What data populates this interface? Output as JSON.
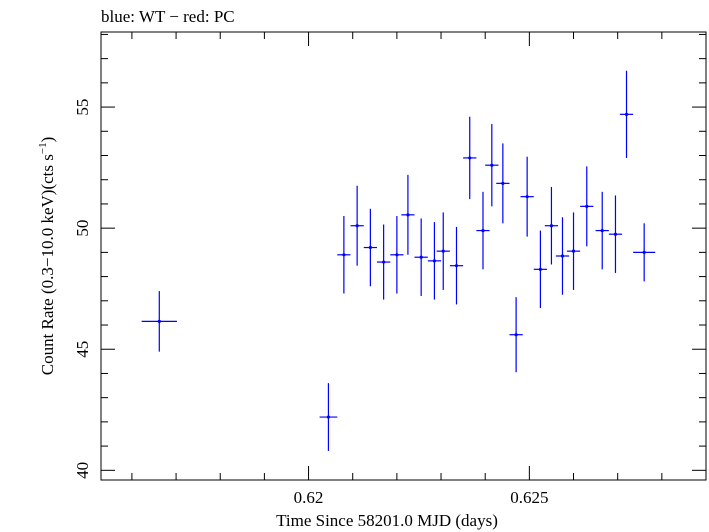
{
  "chart_data": {
    "type": "scatter",
    "title": "blue: WT − red: PC",
    "xlabel": "Time Since 58201.0 MJD (days)",
    "ylabel_main": "Count Rate (0.3−10.0 keV)(cts s",
    "ylabel_sup": "−1",
    "ylabel_end": ")",
    "xlim": [
      0.6153,
      0.629
    ],
    "ylim": [
      39.6,
      58.1
    ],
    "x_ticks": [
      {
        "value": 0.62,
        "label": "0.62"
      },
      {
        "value": 0.625,
        "label": "0.625"
      }
    ],
    "x_minor_step": 0.001,
    "y_ticks": [
      {
        "value": 40,
        "label": "40"
      },
      {
        "value": 45,
        "label": "45"
      },
      {
        "value": 50,
        "label": "50"
      },
      {
        "value": 55,
        "label": "55"
      }
    ],
    "y_minor_step": 1,
    "grid": false,
    "series": [
      {
        "color": "#0000ff",
        "points": [
          {
            "x": 0.61662,
            "y": 46.15,
            "xerr": 0.0004,
            "yerr": 1.25
          },
          {
            "x": 0.62045,
            "y": 42.2,
            "xerr": 0.0002,
            "yerr": 1.4
          },
          {
            "x": 0.6208,
            "y": 48.9,
            "xerr": 0.00015,
            "yerr": 1.6
          },
          {
            "x": 0.6211,
            "y": 50.1,
            "xerr": 0.00015,
            "yerr": 1.65
          },
          {
            "x": 0.6214,
            "y": 49.2,
            "xerr": 0.00015,
            "yerr": 1.6
          },
          {
            "x": 0.6217,
            "y": 48.6,
            "xerr": 0.00015,
            "yerr": 1.55
          },
          {
            "x": 0.622,
            "y": 48.9,
            "xerr": 0.00015,
            "yerr": 1.6
          },
          {
            "x": 0.62225,
            "y": 50.55,
            "xerr": 0.00015,
            "yerr": 1.65
          },
          {
            "x": 0.62255,
            "y": 48.8,
            "xerr": 0.00015,
            "yerr": 1.6
          },
          {
            "x": 0.62285,
            "y": 48.65,
            "xerr": 0.00015,
            "yerr": 1.6
          },
          {
            "x": 0.62305,
            "y": 49.05,
            "xerr": 0.00015,
            "yerr": 1.6
          },
          {
            "x": 0.62335,
            "y": 48.45,
            "xerr": 0.00015,
            "yerr": 1.6
          },
          {
            "x": 0.62365,
            "y": 52.9,
            "xerr": 0.00015,
            "yerr": 1.7
          },
          {
            "x": 0.62395,
            "y": 49.9,
            "xerr": 0.00015,
            "yerr": 1.6
          },
          {
            "x": 0.62415,
            "y": 52.6,
            "xerr": 0.00015,
            "yerr": 1.7
          },
          {
            "x": 0.6244,
            "y": 51.85,
            "xerr": 0.00015,
            "yerr": 1.65
          },
          {
            "x": 0.6247,
            "y": 45.6,
            "xerr": 0.00015,
            "yerr": 1.55
          },
          {
            "x": 0.62495,
            "y": 51.3,
            "xerr": 0.00015,
            "yerr": 1.65
          },
          {
            "x": 0.62525,
            "y": 48.3,
            "xerr": 0.00015,
            "yerr": 1.6
          },
          {
            "x": 0.6255,
            "y": 50.1,
            "xerr": 0.00015,
            "yerr": 1.6
          },
          {
            "x": 0.62575,
            "y": 48.85,
            "xerr": 0.00015,
            "yerr": 1.6
          },
          {
            "x": 0.626,
            "y": 49.05,
            "xerr": 0.00015,
            "yerr": 1.6
          },
          {
            "x": 0.6263,
            "y": 50.9,
            "xerr": 0.00015,
            "yerr": 1.65
          },
          {
            "x": 0.62665,
            "y": 49.9,
            "xerr": 0.00015,
            "yerr": 1.6
          },
          {
            "x": 0.62695,
            "y": 49.75,
            "xerr": 0.00015,
            "yerr": 1.6
          },
          {
            "x": 0.6272,
            "y": 54.7,
            "xerr": 0.00015,
            "yerr": 1.8
          },
          {
            "x": 0.6276,
            "y": 49.0,
            "xerr": 0.00025,
            "yerr": 1.2
          }
        ]
      }
    ]
  }
}
